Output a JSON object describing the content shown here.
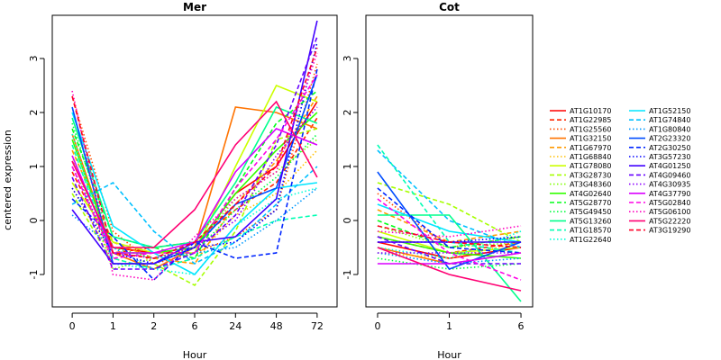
{
  "chart_data": {
    "type": "line",
    "ylabel": "centered expression",
    "legend_position": "right",
    "genes": [
      {
        "name": "AT1G10170",
        "color": "#FF0000",
        "dash": "solid"
      },
      {
        "name": "AT1G22985",
        "color": "#FF2600",
        "dash": "dashed"
      },
      {
        "name": "AT1G25560",
        "color": "#FF4D00",
        "dash": "dotted"
      },
      {
        "name": "AT1G32150",
        "color": "#FF7300",
        "dash": "solid"
      },
      {
        "name": "AT1G67970",
        "color": "#FF9900",
        "dash": "dashed"
      },
      {
        "name": "AT1G68840",
        "color": "#FFBF00",
        "dash": "dotted"
      },
      {
        "name": "AT1G78080",
        "color": "#CCFF00",
        "dash": "solid"
      },
      {
        "name": "AT3G28730",
        "color": "#A6FF00",
        "dash": "dashed"
      },
      {
        "name": "AT3G48360",
        "color": "#80FF00",
        "dash": "dotted"
      },
      {
        "name": "AT4G02640",
        "color": "#33FF00",
        "dash": "solid"
      },
      {
        "name": "AT5G28770",
        "color": "#00FF1A",
        "dash": "dashed"
      },
      {
        "name": "AT5G49450",
        "color": "#00FF40",
        "dash": "dotted"
      },
      {
        "name": "AT5G13260",
        "color": "#00FF8C",
        "dash": "solid"
      },
      {
        "name": "AT1G18570",
        "color": "#00FFB3",
        "dash": "dashed"
      },
      {
        "name": "AT1G22640",
        "color": "#00FFD9",
        "dash": "dotted"
      },
      {
        "name": "AT1G52150",
        "color": "#00E6FF",
        "dash": "solid"
      },
      {
        "name": "AT1G74840",
        "color": "#00C0FF",
        "dash": "dashed"
      },
      {
        "name": "AT1G80840",
        "color": "#0099FF",
        "dash": "dotted"
      },
      {
        "name": "AT2G23320",
        "color": "#004DFF",
        "dash": "solid"
      },
      {
        "name": "AT2G30250",
        "color": "#0026FF",
        "dash": "dashed"
      },
      {
        "name": "AT3G57230",
        "color": "#0000FF",
        "dash": "dotted"
      },
      {
        "name": "AT4G01250",
        "color": "#4000FF",
        "dash": "solid"
      },
      {
        "name": "AT4G09460",
        "color": "#6600FF",
        "dash": "dashed"
      },
      {
        "name": "AT4G30935",
        "color": "#8C00FF",
        "dash": "dotted"
      },
      {
        "name": "AT4G37790",
        "color": "#D900FF",
        "dash": "solid"
      },
      {
        "name": "AT5G02840",
        "color": "#FF00E6",
        "dash": "dashed"
      },
      {
        "name": "AT5G06100",
        "color": "#FF00BF",
        "dash": "dotted"
      },
      {
        "name": "AT5G22220",
        "color": "#FF0073",
        "dash": "solid"
      },
      {
        "name": "AT3G19290",
        "color": "#FF0026",
        "dash": "dashed"
      }
    ],
    "panels": [
      {
        "title": "Mer",
        "xlabel": "Hour",
        "categories": [
          "0",
          "1",
          "2",
          "6",
          "24",
          "48",
          "72"
        ],
        "ylim": [
          -1.6,
          3.8
        ],
        "yticks": [
          -1,
          0,
          1,
          2,
          3
        ],
        "series": [
          [
            1.1,
            -0.5,
            -0.6,
            -0.5,
            0.5,
            1.0,
            2.2
          ],
          [
            0.9,
            -0.6,
            -0.5,
            -0.4,
            0.2,
            0.7,
            1.9
          ],
          [
            2.3,
            -0.2,
            -0.8,
            -0.6,
            -0.3,
            0.2,
            2.9
          ],
          [
            1.6,
            -0.6,
            -0.9,
            -0.5,
            2.1,
            2.0,
            1.7
          ],
          [
            1.3,
            -0.4,
            -0.7,
            -0.8,
            0.3,
            1.1,
            2.3
          ],
          [
            0.6,
            -0.7,
            -0.9,
            -0.7,
            0.1,
            0.5,
            1.3
          ],
          [
            0.7,
            -0.4,
            -0.6,
            -0.6,
            1.0,
            2.5,
            2.2
          ],
          [
            0.5,
            -0.8,
            -0.8,
            -1.2,
            -0.2,
            1.5,
            1.7
          ],
          [
            1.2,
            -0.9,
            -0.7,
            -0.5,
            0.4,
            0.9,
            1.5
          ],
          [
            1.5,
            -0.6,
            -0.6,
            -0.5,
            0.5,
            1.3,
            2.0
          ],
          [
            1.7,
            -0.3,
            -0.5,
            -0.7,
            0.6,
            1.8,
            2.4
          ],
          [
            1.8,
            -0.5,
            -0.7,
            -0.6,
            0.2,
            0.8,
            1.6
          ],
          [
            1.9,
            -0.3,
            -0.5,
            -0.4,
            0.7,
            2.1,
            1.8
          ],
          [
            1.4,
            -0.7,
            -0.9,
            -0.7,
            -0.3,
            0.0,
            0.1
          ],
          [
            1.6,
            -0.8,
            -0.9,
            -1.0,
            -0.1,
            0.4,
            0.6
          ],
          [
            2.0,
            -0.1,
            -0.6,
            -1.0,
            -0.1,
            0.6,
            0.7
          ],
          [
            0.3,
            0.7,
            -0.2,
            -0.8,
            -0.4,
            0.3,
            1.0
          ],
          [
            0.1,
            -0.5,
            -0.9,
            -0.6,
            -0.5,
            0.0,
            0.6
          ],
          [
            2.1,
            -0.8,
            -0.8,
            -0.5,
            0.3,
            0.6,
            2.7
          ],
          [
            0.4,
            -0.3,
            -1.1,
            -0.4,
            -0.7,
            -0.6,
            2.8
          ],
          [
            0.6,
            -0.6,
            -0.8,
            -0.5,
            -0.4,
            0.2,
            3.3
          ],
          [
            0.2,
            -0.8,
            -0.8,
            -0.4,
            -0.3,
            0.4,
            3.7
          ],
          [
            0.8,
            -0.9,
            -0.9,
            -0.6,
            0.1,
            1.4,
            3.4
          ],
          [
            1.0,
            -0.6,
            -0.7,
            -0.5,
            0.0,
            1.2,
            2.1
          ],
          [
            1.2,
            -0.6,
            -0.6,
            -0.4,
            0.9,
            1.7,
            1.4
          ],
          [
            1.0,
            -0.7,
            -0.6,
            -0.6,
            0.6,
            1.5,
            2.7
          ],
          [
            2.4,
            -1.0,
            -1.1,
            -0.3,
            0.4,
            0.9,
            3.1
          ],
          [
            1.1,
            -0.5,
            -0.5,
            0.2,
            1.4,
            2.2,
            0.8
          ],
          [
            2.3,
            -0.6,
            -0.7,
            -0.4,
            0.3,
            1.0,
            3.2
          ]
        ]
      },
      {
        "title": "Cot",
        "xlabel": "Hour",
        "categories": [
          "0",
          "1",
          "6"
        ],
        "ylim": [
          -1.6,
          3.8
        ],
        "yticks": [
          -1,
          0,
          1,
          2,
          3
        ],
        "series": [
          [
            -0.4,
            -0.7,
            -0.5
          ],
          [
            -0.3,
            -0.6,
            -0.4
          ],
          [
            0.5,
            -0.5,
            -0.3
          ],
          [
            -0.5,
            -0.8,
            -0.6
          ],
          [
            0.2,
            -0.4,
            -0.2
          ],
          [
            -0.6,
            -0.7,
            -0.4
          ],
          [
            -0.2,
            -0.6,
            -0.5
          ],
          [
            0.7,
            0.3,
            -0.4
          ],
          [
            -0.1,
            -0.5,
            -0.4
          ],
          [
            -0.3,
            -0.6,
            -0.7
          ],
          [
            0.0,
            -0.5,
            -0.3
          ],
          [
            -0.7,
            -0.9,
            -0.8
          ],
          [
            0.1,
            0.1,
            -1.5
          ],
          [
            1.4,
            -0.4,
            -0.6
          ],
          [
            -0.5,
            -0.7,
            -0.2
          ],
          [
            0.3,
            -0.2,
            -0.4
          ],
          [
            1.3,
            0.0,
            -0.5
          ],
          [
            -0.6,
            -0.8,
            -0.7
          ],
          [
            0.9,
            -0.9,
            -0.4
          ],
          [
            0.6,
            -0.5,
            -0.6
          ],
          [
            -0.4,
            -0.4,
            -0.3
          ],
          [
            -0.4,
            -0.4,
            -0.4
          ],
          [
            -0.3,
            -0.8,
            -0.8
          ],
          [
            -0.6,
            -0.6,
            -0.6
          ],
          [
            -0.8,
            -0.8,
            -0.6
          ],
          [
            0.4,
            -0.6,
            -1.1
          ],
          [
            -0.2,
            -0.3,
            -0.1
          ],
          [
            -0.5,
            -1.0,
            -1.3
          ],
          [
            -0.1,
            -0.4,
            -0.5
          ]
        ]
      }
    ]
  }
}
